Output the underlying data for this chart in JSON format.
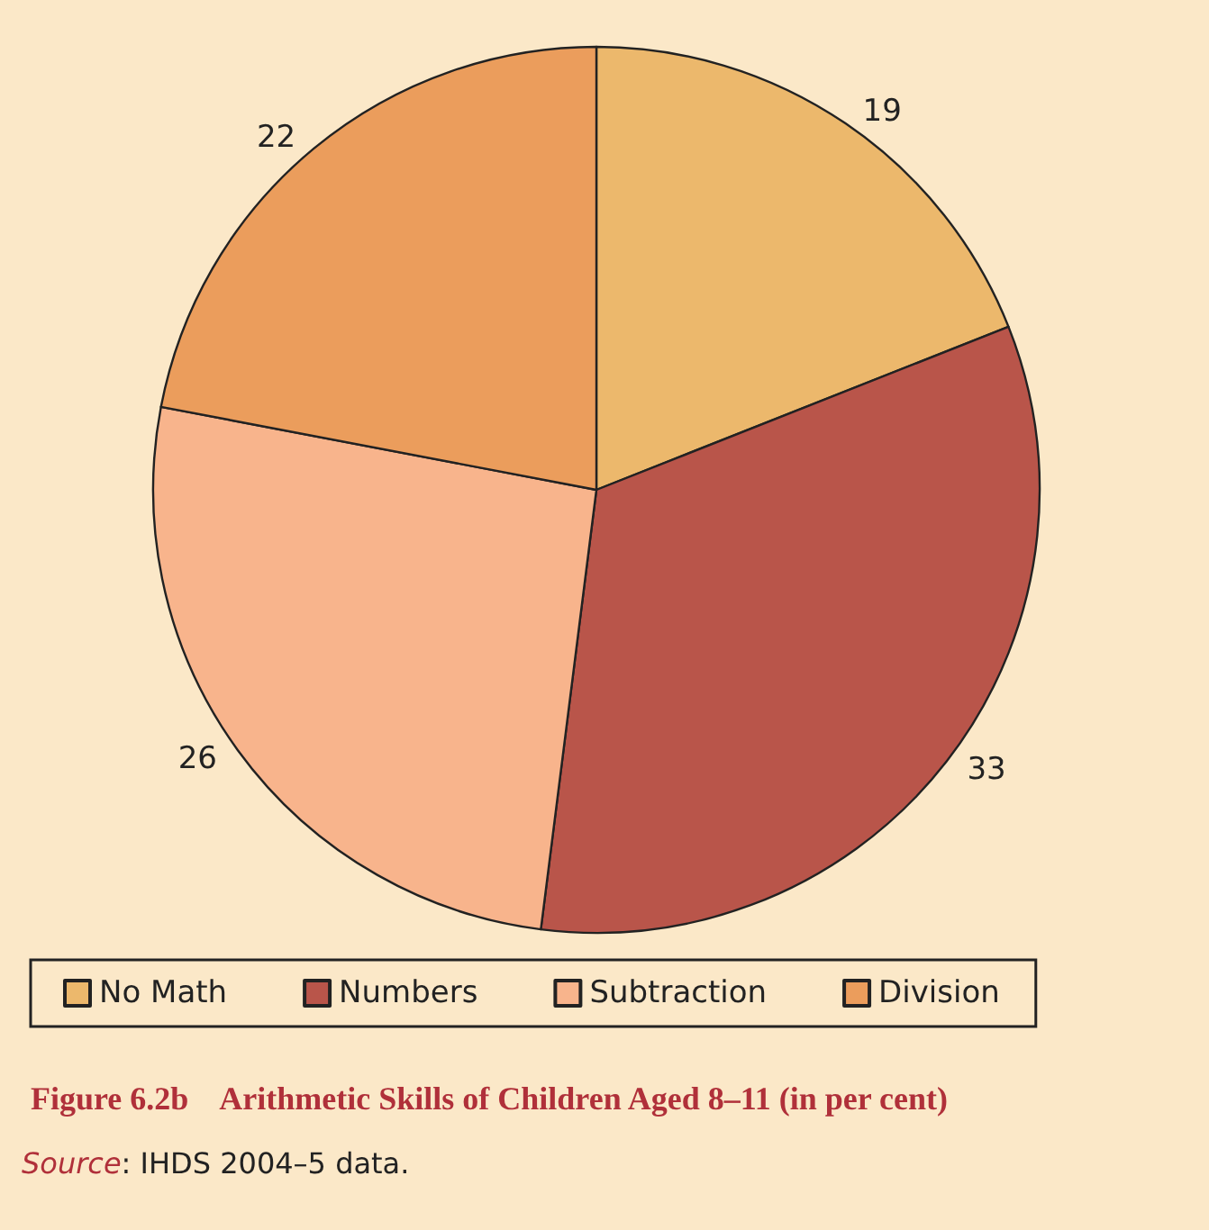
{
  "chart_data": {
    "type": "pie",
    "title": "Figure 6.2b    Arithmetic Skills of Children Aged 8–11 (in per cent)",
    "categories": [
      "No Math",
      "Numbers",
      "Subtraction",
      "Division"
    ],
    "values": [
      19,
      33,
      26,
      22
    ],
    "colors": [
      "#ecb86c",
      "#b9554a",
      "#f8b48c",
      "#eb9d5c"
    ],
    "data_labels": true,
    "legend": "bottom",
    "annotations": [
      "Source: IHDS 2004–5 data."
    ]
  }
}
